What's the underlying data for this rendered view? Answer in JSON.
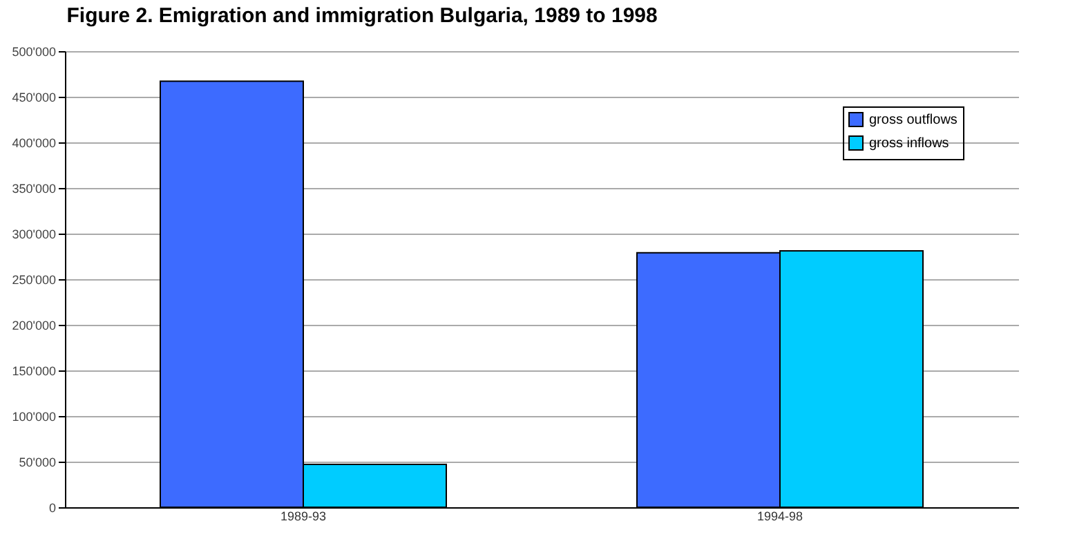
{
  "chart_data": {
    "type": "bar",
    "title": "Figure 2. Emigration and immigration Bulgaria, 1989 to 1998",
    "categories": [
      "1989-93",
      "1994-98"
    ],
    "series": [
      {
        "name": "gross outflows",
        "color": "#3d6bff",
        "values": [
          467000,
          279000
        ]
      },
      {
        "name": "gross inflows",
        "color": "#00ccff",
        "values": [
          47000,
          281000
        ]
      }
    ],
    "ylim": [
      0,
      500000
    ],
    "yticks": [
      {
        "value": 0,
        "label": "0"
      },
      {
        "value": 50000,
        "label": "50'000"
      },
      {
        "value": 100000,
        "label": "100'000"
      },
      {
        "value": 150000,
        "label": "150'000"
      },
      {
        "value": 200000,
        "label": "200'000"
      },
      {
        "value": 250000,
        "label": "250'000"
      },
      {
        "value": 300000,
        "label": "300'000"
      },
      {
        "value": 350000,
        "label": "350'000"
      },
      {
        "value": 400000,
        "label": "400'000"
      },
      {
        "value": 450000,
        "label": "450'000"
      },
      {
        "value": 500000,
        "label": "500'000"
      }
    ],
    "grid": "y",
    "legend": "top right"
  }
}
